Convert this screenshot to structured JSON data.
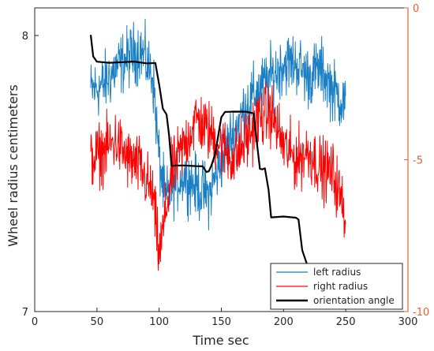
{
  "chart_data": {
    "type": "line",
    "title": "",
    "xlabel": "Time sec",
    "ylabel": "Wheel radius centimeters",
    "y2label": "",
    "xlim": [
      0,
      300
    ],
    "ylim": [
      7,
      8.1
    ],
    "y2lim": [
      -10,
      0
    ],
    "x_ticks": [
      "0",
      "50",
      "100",
      "150",
      "200",
      "250",
      "300"
    ],
    "y_ticks": [
      "7",
      "8"
    ],
    "y2_ticks": [
      "0",
      "-5",
      "-10"
    ],
    "grid": false,
    "legend_position": "bottom-right",
    "colors": {
      "left": "#1a7fc4",
      "right": "#ff0000",
      "orientation": "#000000",
      "right_axis": "#e8612c"
    },
    "series": [
      {
        "name": "left radius",
        "axis": "left",
        "color": "#1a7fc4",
        "x": [
          45,
          55,
          65,
          75,
          85,
          95,
          100,
          105,
          110,
          120,
          130,
          140,
          150,
          160,
          170,
          180,
          190,
          200,
          210,
          220,
          230,
          240,
          250
        ],
        "y": [
          7.8,
          7.82,
          7.88,
          7.92,
          7.95,
          7.85,
          7.55,
          7.4,
          7.45,
          7.5,
          7.45,
          7.42,
          7.55,
          7.65,
          7.75,
          7.8,
          7.85,
          7.9,
          7.9,
          7.85,
          7.88,
          7.8,
          7.75
        ]
      },
      {
        "name": "right radius",
        "axis": "left",
        "color": "#ff0000",
        "x": [
          45,
          55,
          65,
          75,
          85,
          95,
          100,
          105,
          110,
          120,
          130,
          140,
          150,
          160,
          170,
          180,
          190,
          200,
          210,
          220,
          230,
          240,
          250
        ],
        "y": [
          7.55,
          7.58,
          7.62,
          7.55,
          7.52,
          7.42,
          7.2,
          7.35,
          7.5,
          7.6,
          7.7,
          7.65,
          7.6,
          7.55,
          7.62,
          7.7,
          7.72,
          7.6,
          7.55,
          7.58,
          7.52,
          7.5,
          7.35
        ]
      },
      {
        "name": "orientation angle",
        "axis": "right",
        "color": "#000000",
        "x": [
          45,
          47,
          50,
          60,
          70,
          80,
          90,
          97,
          100,
          103,
          106,
          108,
          110,
          113,
          120,
          130,
          135,
          138,
          140,
          142,
          145,
          150,
          153,
          155,
          160,
          170,
          176,
          178,
          181,
          183,
          185,
          188,
          190,
          200,
          210,
          212,
          215,
          220,
          230,
          235,
          240,
          250,
          252
        ],
        "y": [
          -0.9,
          -1.6,
          -1.8,
          -1.8,
          -1.8,
          -1.8,
          -1.8,
          -1.8,
          -2.5,
          -3.3,
          -3.5,
          -4.2,
          -5.2,
          -5.2,
          -5.2,
          -5.2,
          -5.2,
          -5.4,
          -5.4,
          -5.2,
          -4.8,
          -3.6,
          -3.4,
          -3.4,
          -3.4,
          -3.4,
          -3.5,
          -4.2,
          -5.3,
          -5.3,
          -5.3,
          -6.0,
          -6.9,
          -6.9,
          -6.9,
          -7.0,
          -8.0,
          -8.6,
          -8.6,
          -8.7,
          -8.6,
          -8.6,
          -8.6
        ]
      }
    ]
  }
}
